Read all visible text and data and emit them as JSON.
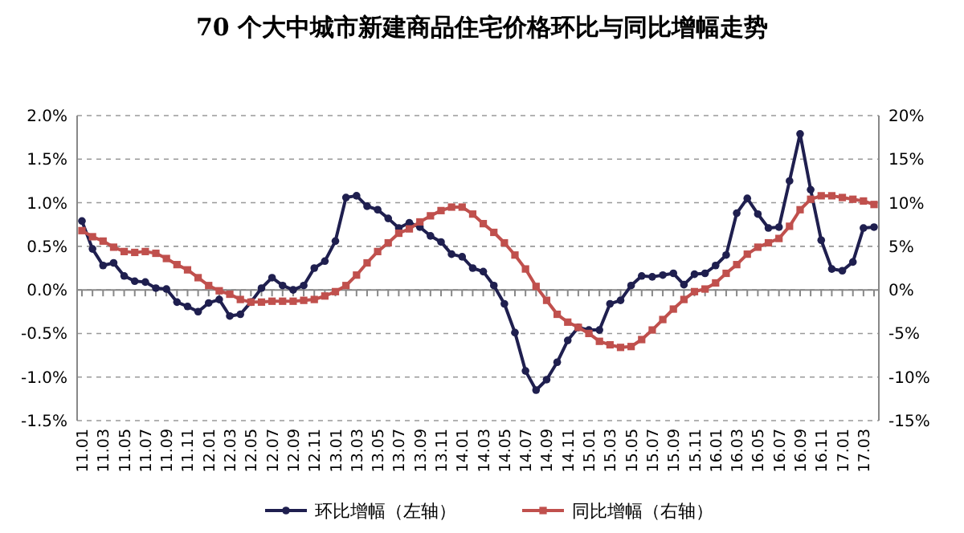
{
  "chart_data": {
    "type": "line",
    "title": "70 个大中城市新建商品住宅价格环比与同比增幅走势",
    "categories": [
      "11.01",
      null,
      "11.03",
      null,
      "11.05",
      null,
      "11.07",
      null,
      "11.09",
      null,
      "11.11",
      null,
      "12.01",
      null,
      "12.03",
      null,
      "12.05",
      null,
      "12.07",
      null,
      "12.09",
      null,
      "12.11",
      null,
      "13.01",
      null,
      "13.03",
      null,
      "13.05",
      null,
      "13.07",
      null,
      "13.09",
      null,
      "13.11",
      null,
      "14.01",
      null,
      "14.03",
      null,
      "14.05",
      null,
      "14.07",
      null,
      "14.09",
      null,
      "14.11",
      null,
      "15.01",
      null,
      "15.03",
      null,
      "15.05",
      null,
      "15.07",
      null,
      "15.09",
      null,
      "15.11",
      null,
      "16.01",
      null,
      "16.03",
      null,
      "16.05",
      null,
      "16.07",
      null,
      "16.09",
      null,
      "16.11",
      null,
      "17.01",
      null,
      "17.03",
      null
    ],
    "series": [
      {
        "name": "环比增幅（左轴）",
        "color": "#1f1f4f",
        "marker": "circle",
        "values": [
          0.79,
          0.47,
          0.28,
          0.31,
          0.16,
          0.1,
          0.09,
          0.02,
          0.01,
          -0.14,
          -0.19,
          -0.25,
          -0.15,
          -0.11,
          -0.3,
          -0.28,
          -0.14,
          0.02,
          0.14,
          0.05,
          0.0,
          0.05,
          0.25,
          0.33,
          0.56,
          1.06,
          1.08,
          0.96,
          0.92,
          0.82,
          0.71,
          0.77,
          0.72,
          0.62,
          0.55,
          0.41,
          0.38,
          0.25,
          0.21,
          0.05,
          -0.16,
          -0.49,
          -0.93,
          -1.15,
          -1.03,
          -0.83,
          -0.58,
          -0.43,
          -0.46,
          -0.46,
          -0.16,
          -0.12,
          0.05,
          0.16,
          0.15,
          0.17,
          0.19,
          0.06,
          0.18,
          0.19,
          0.28,
          0.4,
          0.88,
          1.05,
          0.87,
          0.71,
          0.72,
          1.25,
          1.79,
          1.15,
          0.57,
          0.24,
          0.22,
          0.32,
          0.71,
          0.72
        ]
      },
      {
        "name": "同比增幅（右轴）",
        "color": "#c0504d",
        "marker": "square",
        "axis": "y2",
        "values": [
          6.8,
          6.1,
          5.6,
          4.9,
          4.4,
          4.3,
          4.4,
          4.2,
          3.6,
          2.9,
          2.3,
          1.4,
          0.5,
          -0.1,
          -0.5,
          -1.1,
          -1.4,
          -1.4,
          -1.3,
          -1.3,
          -1.3,
          -1.2,
          -1.1,
          -0.7,
          -0.2,
          0.5,
          1.7,
          3.1,
          4.4,
          5.4,
          6.5,
          7.0,
          7.8,
          8.5,
          9.1,
          9.5,
          9.5,
          8.7,
          7.6,
          6.6,
          5.4,
          4.0,
          2.4,
          0.4,
          -1.2,
          -2.8,
          -3.7,
          -4.3,
          -5.0,
          -5.9,
          -6.3,
          -6.6,
          -6.5,
          -5.7,
          -4.6,
          -3.4,
          -2.2,
          -1.1,
          -0.2,
          0.1,
          0.8,
          1.9,
          2.9,
          4.1,
          4.9,
          5.4,
          5.9,
          7.3,
          9.2,
          10.4,
          10.8,
          10.8,
          10.6,
          10.4,
          10.2,
          9.8
        ]
      }
    ],
    "ylim": [
      -1.5,
      2
    ],
    "yticks": [
      {
        "value": -1.5,
        "label": "-1.5%"
      },
      {
        "value": -1,
        "label": "-1.0%"
      },
      {
        "value": -0.5,
        "label": "-0.5%"
      },
      {
        "value": 0,
        "label": "0.0%"
      },
      {
        "value": 0.5,
        "label": "0.5%"
      },
      {
        "value": 1,
        "label": "1.0%"
      },
      {
        "value": 1.5,
        "label": "1.5%"
      },
      {
        "value": 2,
        "label": "2.0%"
      }
    ],
    "y2lim": [
      -15,
      20
    ],
    "y2ticks": [
      {
        "value": -15,
        "label": "-15%"
      },
      {
        "value": -10,
        "label": "-10%"
      },
      {
        "value": -5,
        "label": "-5%"
      },
      {
        "value": 0,
        "label": "0%"
      },
      {
        "value": 5,
        "label": "5%"
      },
      {
        "value": 10,
        "label": "10%"
      },
      {
        "value": 15,
        "label": "15%"
      },
      {
        "value": 20,
        "label": "20%"
      }
    ],
    "grid": "y",
    "legend": "bottom",
    "line_style": "solid"
  }
}
